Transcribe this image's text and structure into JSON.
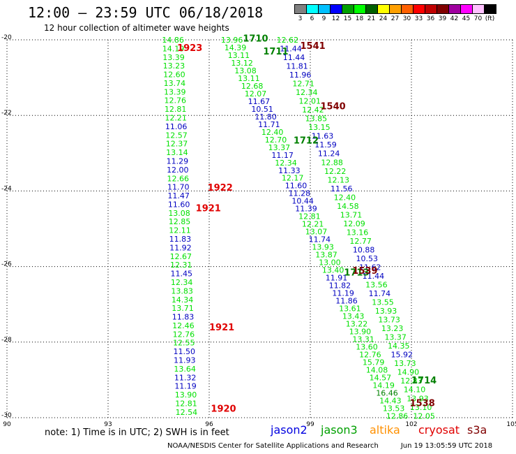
{
  "header": {
    "title": "12:00 – 23:59 UTC 06/18/2018",
    "subtitle": "12 hour collection of altimeter wave heights"
  },
  "scale": {
    "colors": [
      "#808080",
      "#00ffff",
      "#00c0ff",
      "#0000ff",
      "#00a000",
      "#00ff00",
      "#006000",
      "#ffff00",
      "#ffa000",
      "#ff6000",
      "#ff0000",
      "#c00000",
      "#800000",
      "#a000a0",
      "#ff00ff",
      "#ffc0ff",
      "#000000"
    ],
    "labels": [
      "3",
      "6",
      "9",
      "12",
      "15",
      "18",
      "21",
      "24",
      "27",
      "30",
      "33",
      "36",
      "39",
      "42",
      "45",
      "70",
      "(ft)"
    ]
  },
  "map": {
    "lat_ticks": [
      "-20",
      "-22",
      "-24",
      "-26",
      "-28",
      "-30"
    ],
    "lon_ticks": [
      "90",
      "93",
      "96",
      "99",
      "102",
      "105"
    ],
    "lat_range": [
      -30,
      -20
    ],
    "lon_range": [
      90,
      105
    ]
  },
  "pass_labels": [
    {
      "text": "1923",
      "color": "#e00000",
      "lon": 95.05,
      "lat": -20.2
    },
    {
      "text": "1922",
      "color": "#e00000",
      "lon": 95.95,
      "lat": -23.9
    },
    {
      "text": "1921",
      "color": "#e00000",
      "lon": 95.6,
      "lat": -24.45
    },
    {
      "text": "1921",
      "color": "#e00000",
      "lon": 96.0,
      "lat": -27.6
    },
    {
      "text": "1920",
      "color": "#e00000",
      "lon": 96.05,
      "lat": -29.75
    },
    {
      "text": "1710",
      "color": "#008000",
      "lon": 97.0,
      "lat": -19.95
    },
    {
      "text": "1711",
      "color": "#008000",
      "lon": 97.6,
      "lat": -20.3
    },
    {
      "text": "1712",
      "color": "#008000",
      "lon": 98.5,
      "lat": -22.65
    },
    {
      "text": "1713",
      "color": "#008000",
      "lon": 100.0,
      "lat": -26.15
    },
    {
      "text": "1714",
      "color": "#008000",
      "lon": 102.0,
      "lat": -29.0
    },
    {
      "text": "1541",
      "color": "#800000",
      "lon": 98.7,
      "lat": -20.15
    },
    {
      "text": "1540",
      "color": "#800000",
      "lon": 99.3,
      "lat": -21.75
    },
    {
      "text": "1539",
      "color": "#800000",
      "lon": 100.25,
      "lat": -26.1
    },
    {
      "text": "1538",
      "color": "#800000",
      "lon": 101.95,
      "lat": -29.6
    }
  ],
  "tracks": [
    {
      "name": "jason3-left",
      "start": {
        "lon": 94.6,
        "lat": -20.0
      },
      "end": {
        "lon": 95.0,
        "lat": -29.85
      },
      "values": [
        {
          "v": "14.86",
          "c": "#00e000"
        },
        {
          "v": "14.19",
          "c": "#00e000"
        },
        {
          "v": "13.39",
          "c": "#00e000"
        },
        {
          "v": "13.23",
          "c": "#00e000"
        },
        {
          "v": "12.60",
          "c": "#00e000"
        },
        {
          "v": "13.74",
          "c": "#00e000"
        },
        {
          "v": "13.39",
          "c": "#00e000"
        },
        {
          "v": "12.76",
          "c": "#00e000"
        },
        {
          "v": "12.81",
          "c": "#00e000"
        },
        {
          "v": "12.21",
          "c": "#00e000"
        },
        {
          "v": "11.06",
          "c": "#0000c0"
        },
        {
          "v": "12.57",
          "c": "#00e000"
        },
        {
          "v": "12.37",
          "c": "#00e000"
        },
        {
          "v": "13.14",
          "c": "#00e000"
        },
        {
          "v": "11.29",
          "c": "#0000c0"
        },
        {
          "v": "12.00",
          "c": "#0000c0"
        },
        {
          "v": "12.66",
          "c": "#00e000"
        },
        {
          "v": "11.70",
          "c": "#0000c0"
        },
        {
          "v": "11.47",
          "c": "#0000c0"
        },
        {
          "v": "11.60",
          "c": "#0000c0"
        },
        {
          "v": "13.08",
          "c": "#00e000"
        },
        {
          "v": "12.85",
          "c": "#00e000"
        },
        {
          "v": "12.11",
          "c": "#00e000"
        },
        {
          "v": "11.83",
          "c": "#0000c0"
        },
        {
          "v": "11.92",
          "c": "#0000c0"
        },
        {
          "v": "12.67",
          "c": "#00e000"
        },
        {
          "v": "12.31",
          "c": "#00e000"
        },
        {
          "v": "11.45",
          "c": "#0000c0"
        },
        {
          "v": "12.34",
          "c": "#00e000"
        },
        {
          "v": "13.83",
          "c": "#00e000"
        },
        {
          "v": "14.34",
          "c": "#00e000"
        },
        {
          "v": "13.71",
          "c": "#00e000"
        },
        {
          "v": "11.83",
          "c": "#0000c0"
        },
        {
          "v": "12.46",
          "c": "#00e000"
        },
        {
          "v": "12.76",
          "c": "#00e000"
        },
        {
          "v": "12.55",
          "c": "#00e000"
        },
        {
          "v": "11.50",
          "c": "#0000c0"
        },
        {
          "v": "11.93",
          "c": "#0000c0"
        },
        {
          "v": "13.64",
          "c": "#00e000"
        },
        {
          "v": "11.32",
          "c": "#0000c0"
        },
        {
          "v": "11.19",
          "c": "#0000c0"
        },
        {
          "v": "13.90",
          "c": "#00e000"
        },
        {
          "v": "12.81",
          "c": "#00e000"
        },
        {
          "v": "12.54",
          "c": "#00e000"
        }
      ]
    },
    {
      "name": "jason3-diagonal",
      "start": {
        "lon": 96.35,
        "lat": -20.0
      },
      "end": {
        "lon": 101.25,
        "lat": -29.95
      },
      "values": [
        {
          "v": "13.96",
          "c": "#00e000"
        },
        {
          "v": "14.39",
          "c": "#00e000"
        },
        {
          "v": "13.11",
          "c": "#00e000"
        },
        {
          "v": "13.12",
          "c": "#00e000"
        },
        {
          "v": "13.08",
          "c": "#00e000"
        },
        {
          "v": "13.11",
          "c": "#00e000"
        },
        {
          "v": "12.68",
          "c": "#00e000"
        },
        {
          "v": "12.07",
          "c": "#00e000"
        },
        {
          "v": "11.67",
          "c": "#0000c0"
        },
        {
          "v": "10.51",
          "c": "#0000c0"
        },
        {
          "v": "11.80",
          "c": "#0000c0"
        },
        {
          "v": "11.71",
          "c": "#0000c0"
        },
        {
          "v": "12.40",
          "c": "#00e000"
        },
        {
          "v": "12.70",
          "c": "#00e000"
        },
        {
          "v": "13.37",
          "c": "#00e000"
        },
        {
          "v": "11.17",
          "c": "#0000c0"
        },
        {
          "v": "12.34",
          "c": "#00e000"
        },
        {
          "v": "11.33",
          "c": "#0000c0"
        },
        {
          "v": "12.17",
          "c": "#00e000"
        },
        {
          "v": "11.60",
          "c": "#0000c0"
        },
        {
          "v": "11.28",
          "c": "#0000c0"
        },
        {
          "v": "10.44",
          "c": "#0000c0"
        },
        {
          "v": "11.39",
          "c": "#0000c0"
        },
        {
          "v": "12.81",
          "c": "#00e000"
        },
        {
          "v": "12.21",
          "c": "#00e000"
        },
        {
          "v": "13.07",
          "c": "#00e000"
        },
        {
          "v": "11.74",
          "c": "#0000c0"
        },
        {
          "v": "13.93",
          "c": "#00e000"
        },
        {
          "v": "13.87",
          "c": "#00e000"
        },
        {
          "v": "13.00",
          "c": "#00e000"
        },
        {
          "v": "13.40",
          "c": "#00e000"
        },
        {
          "v": "11.91",
          "c": "#0000c0"
        },
        {
          "v": "11.82",
          "c": "#0000c0"
        },
        {
          "v": "11.19",
          "c": "#0000c0"
        },
        {
          "v": "11.86",
          "c": "#0000c0"
        },
        {
          "v": "13.61",
          "c": "#00e000"
        },
        {
          "v": "13.43",
          "c": "#00e000"
        },
        {
          "v": "13.22",
          "c": "#00e000"
        },
        {
          "v": "13.90",
          "c": "#00e000"
        },
        {
          "v": "13.31",
          "c": "#00e000"
        },
        {
          "v": "13.60",
          "c": "#00e000"
        },
        {
          "v": "12.76",
          "c": "#00e000"
        },
        {
          "v": "15.79",
          "c": "#00e000"
        },
        {
          "v": "14.08",
          "c": "#00e000"
        },
        {
          "v": "14.57",
          "c": "#00e000"
        },
        {
          "v": "14.19",
          "c": "#00e000"
        },
        {
          "v": "16.46",
          "c": "#008000"
        },
        {
          "v": "14.43",
          "c": "#00e000"
        },
        {
          "v": "13.53",
          "c": "#00e000"
        },
        {
          "v": "12.86",
          "c": "#00e000"
        }
      ]
    },
    {
      "name": "jason2-diagonal",
      "start": {
        "lon": 98.0,
        "lat": -20.0
      },
      "end": {
        "lon": 102.05,
        "lat": -29.95
      },
      "values": [
        {
          "v": "12.62",
          "c": "#00e000"
        },
        {
          "v": "11.44",
          "c": "#0000c0"
        },
        {
          "v": "11.44",
          "c": "#0000c0"
        },
        {
          "v": "11.81",
          "c": "#0000c0"
        },
        {
          "v": "11.96",
          "c": "#0000c0"
        },
        {
          "v": "12.71",
          "c": "#00e000"
        },
        {
          "v": "12.34",
          "c": "#00e000"
        },
        {
          "v": "12.01",
          "c": "#00e000"
        },
        {
          "v": "12.42",
          "c": "#00e000"
        },
        {
          "v": "13.85",
          "c": "#00e000"
        },
        {
          "v": "13.15",
          "c": "#00e000"
        },
        {
          "v": "11.63",
          "c": "#0000c0"
        },
        {
          "v": "11.59",
          "c": "#0000c0"
        },
        {
          "v": "11.24",
          "c": "#0000c0"
        },
        {
          "v": "12.88",
          "c": "#00e000"
        },
        {
          "v": "12.22",
          "c": "#00e000"
        },
        {
          "v": "12.13",
          "c": "#00e000"
        },
        {
          "v": "11.56",
          "c": "#0000c0"
        },
        {
          "v": "12.40",
          "c": "#00e000"
        },
        {
          "v": "14.58",
          "c": "#00e000"
        },
        {
          "v": "13.71",
          "c": "#00e000"
        },
        {
          "v": "12.09",
          "c": "#00e000"
        },
        {
          "v": "13.16",
          "c": "#00e000"
        },
        {
          "v": "12.77",
          "c": "#00e000"
        },
        {
          "v": "10.88",
          "c": "#0000c0"
        },
        {
          "v": "10.53",
          "c": "#0000c0"
        },
        {
          "v": "11.62",
          "c": "#0000c0"
        },
        {
          "v": "11.44",
          "c": "#0000c0"
        },
        {
          "v": "13.56",
          "c": "#00e000"
        },
        {
          "v": "11.74",
          "c": "#0000c0"
        },
        {
          "v": "13.55",
          "c": "#00e000"
        },
        {
          "v": "13.93",
          "c": "#00e000"
        },
        {
          "v": "13.73",
          "c": "#00e000"
        },
        {
          "v": "13.23",
          "c": "#00e000"
        },
        {
          "v": "13.37",
          "c": "#00e000"
        },
        {
          "v": "14.35",
          "c": "#00e000"
        },
        {
          "v": "15.92",
          "c": "#0000c0"
        },
        {
          "v": "13.73",
          "c": "#00e000"
        },
        {
          "v": "14.90",
          "c": "#00e000"
        },
        {
          "v": "12.83",
          "c": "#00e000"
        },
        {
          "v": "14.10",
          "c": "#00e000"
        },
        {
          "v": "13.93",
          "c": "#00e000"
        },
        {
          "v": "13.10",
          "c": "#00e000"
        },
        {
          "v": "12.05",
          "c": "#00e000"
        }
      ]
    }
  ],
  "legend": {
    "note": "note:  1) Time is in UTC;  2) SWH is in feet",
    "items": [
      {
        "label": "jason2",
        "color": "#0000e0"
      },
      {
        "label": "jason3",
        "color": "#00a000"
      },
      {
        "label": "altika",
        "color": "#ff9000"
      },
      {
        "label": "cryosat",
        "color": "#e00000"
      },
      {
        "label": "s3a",
        "color": "#800000"
      }
    ]
  },
  "footer": {
    "org": "NOAA/NESDIS Center for Satellite Applications and Research",
    "timestamp": "Jun 19 13:05:59 UTC 2018"
  }
}
